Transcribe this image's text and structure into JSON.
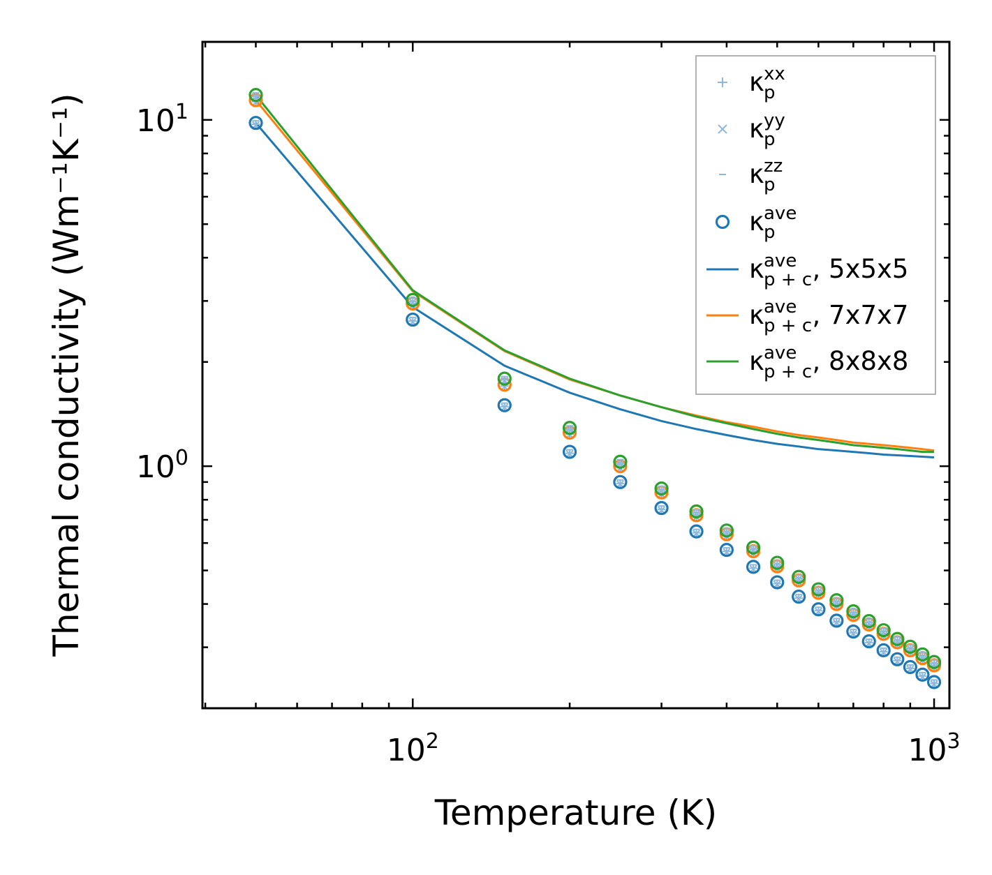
{
  "chart_data": {
    "type": "scatter",
    "title": "",
    "xlabel": "Temperature (K)",
    "ylabel": "Thermal conductivity (Wm⁻¹K⁻¹)",
    "xscale": "log",
    "yscale": "log",
    "xlim": [
      39.5,
      1070
    ],
    "ylim": [
      0.2,
      16.8
    ],
    "x_ticks": [
      {
        "value": 100,
        "base": "10",
        "exp": "2"
      },
      {
        "value": 1000,
        "base": "10",
        "exp": "3"
      }
    ],
    "y_ticks": [
      {
        "value": 1,
        "base": "10",
        "exp": "0"
      },
      {
        "value": 10,
        "base": "10",
        "exp": "1"
      }
    ],
    "x": [
      50,
      100,
      150,
      200,
      250,
      300,
      350,
      400,
      450,
      500,
      550,
      600,
      650,
      700,
      750,
      800,
      850,
      900,
      950,
      1000
    ],
    "legend_position": "top-right",
    "colors": {
      "blue": "#1f77b4",
      "orange": "#ff7f0e",
      "green": "#2ca02c",
      "light_blue": "#8fb9dc"
    },
    "legend": [
      {
        "marker": "plus",
        "base": "κ",
        "sub": "p",
        "sup": "xx",
        "suffix": ""
      },
      {
        "marker": "x",
        "base": "κ",
        "sub": "p",
        "sup": "yy",
        "suffix": ""
      },
      {
        "marker": "hline",
        "base": "κ",
        "sub": "p",
        "sup": "zz",
        "suffix": ""
      },
      {
        "marker": "circle",
        "base": "κ",
        "sub": "p",
        "sup": "ave",
        "suffix": ""
      },
      {
        "marker": "line",
        "color": "#1f77b4",
        "base": "κ",
        "sub": "p + c",
        "sup": "ave",
        "suffix": ", 5x5x5"
      },
      {
        "marker": "line",
        "color": "#ff7f0e",
        "base": "κ",
        "sub": "p + c",
        "sup": "ave",
        "suffix": ", 7x7x7"
      },
      {
        "marker": "line",
        "color": "#2ca02c",
        "base": "κ",
        "sub": "p + c",
        "sup": "ave",
        "suffix": ", 8x8x8"
      }
    ],
    "series": [
      {
        "name": "κ_p^ave (5x5x5)",
        "kind": "points",
        "color": "#1f77b4",
        "values": [
          9.8,
          2.65,
          1.5,
          1.1,
          0.9,
          0.757,
          0.648,
          0.573,
          0.512,
          0.462,
          0.42,
          0.386,
          0.358,
          0.333,
          0.312,
          0.294,
          0.277,
          0.263,
          0.25,
          0.238
        ]
      },
      {
        "name": "κ_p^ave (7x7x7)",
        "kind": "points",
        "color": "#ff7f0e",
        "values": [
          11.4,
          2.95,
          1.72,
          1.25,
          1.0,
          0.84,
          0.722,
          0.636,
          0.568,
          0.514,
          0.468,
          0.431,
          0.4,
          0.372,
          0.349,
          0.328,
          0.31,
          0.294,
          0.279,
          0.266
        ]
      },
      {
        "name": "κ_p^ave (8x8x8)",
        "kind": "points",
        "color": "#2ca02c",
        "values": [
          11.8,
          3.02,
          1.79,
          1.29,
          1.03,
          0.862,
          0.74,
          0.652,
          0.582,
          0.526,
          0.479,
          0.441,
          0.41,
          0.381,
          0.357,
          0.336,
          0.317,
          0.301,
          0.286,
          0.272
        ]
      },
      {
        "name": "κ_p+c^ave, 5x5x5",
        "kind": "line",
        "color": "#1f77b4",
        "values": [
          9.8,
          2.88,
          1.95,
          1.63,
          1.46,
          1.35,
          1.28,
          1.23,
          1.19,
          1.16,
          1.14,
          1.12,
          1.11,
          1.1,
          1.09,
          1.08,
          1.075,
          1.07,
          1.065,
          1.06
        ]
      },
      {
        "name": "κ_p+c^ave, 7x7x7",
        "kind": "line",
        "color": "#ff7f0e",
        "values": [
          11.4,
          3.2,
          2.15,
          1.78,
          1.6,
          1.48,
          1.4,
          1.34,
          1.3,
          1.26,
          1.23,
          1.21,
          1.19,
          1.17,
          1.16,
          1.15,
          1.14,
          1.13,
          1.12,
          1.11
        ]
      },
      {
        "name": "κ_p+c^ave, 8x8x8",
        "kind": "line",
        "color": "#2ca02c",
        "values": [
          11.8,
          3.22,
          2.16,
          1.79,
          1.6,
          1.48,
          1.39,
          1.33,
          1.28,
          1.24,
          1.21,
          1.19,
          1.17,
          1.15,
          1.14,
          1.13,
          1.12,
          1.11,
          1.1,
          1.1
        ]
      }
    ]
  }
}
